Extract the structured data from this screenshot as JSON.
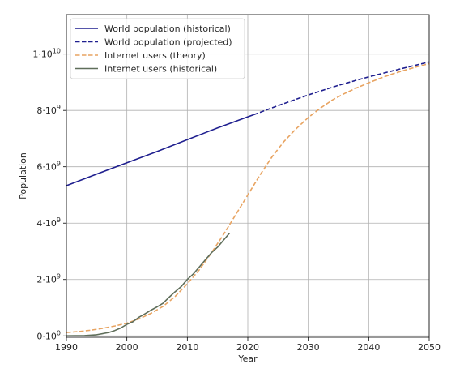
{
  "chart_data": {
    "type": "line",
    "xlabel": "Year",
    "ylabel": "Population",
    "xlim": [
      1990,
      2050
    ],
    "ylim": [
      -0.05,
      11.4
    ],
    "y_unit_exponent": 9,
    "grid": true,
    "legend_placement": "top-left",
    "x_ticks": [
      1990,
      2000,
      2010,
      2020,
      2030,
      2040,
      2050
    ],
    "x_tick_labels": [
      "1990",
      "2000",
      "2010",
      "2020",
      "2030",
      "2040",
      "2050"
    ],
    "y_ticks": [
      0,
      2,
      4,
      6,
      8,
      10
    ],
    "y_tick_labels": [
      {
        "base": "0·10",
        "exp": "0"
      },
      {
        "base": "2·10",
        "exp": "9"
      },
      {
        "base": "4·10",
        "exp": "9"
      },
      {
        "base": "6·10",
        "exp": "9"
      },
      {
        "base": "8·10",
        "exp": "9"
      },
      {
        "base": "1·10",
        "exp": "10"
      }
    ],
    "series": [
      {
        "name": "World population (historical)",
        "color": "#1f1f8f",
        "style": "solid",
        "x": [
          1990,
          1995,
          2000,
          2005,
          2010,
          2015,
          2021
        ],
        "y": [
          5.33,
          5.74,
          6.14,
          6.54,
          6.96,
          7.38,
          7.85
        ]
      },
      {
        "name": "World population (projected)",
        "color": "#1f1f8f",
        "style": "dashed",
        "x": [
          2021,
          2025,
          2030,
          2035,
          2040,
          2045,
          2050
        ],
        "y": [
          7.85,
          8.17,
          8.55,
          8.89,
          9.19,
          9.46,
          9.72
        ]
      },
      {
        "name": "Internet users (theory)",
        "color": "#e8a462",
        "style": "dashed",
        "x": [
          1990,
          1992,
          1994,
          1996,
          1998,
          2000,
          2002,
          2004,
          2006,
          2008,
          2010,
          2012,
          2014,
          2016,
          2018,
          2020,
          2022,
          2024,
          2026,
          2028,
          2030,
          2032,
          2034,
          2036,
          2038,
          2040,
          2042,
          2044,
          2046,
          2048,
          2050
        ],
        "y": [
          0.12,
          0.15,
          0.2,
          0.27,
          0.35,
          0.45,
          0.6,
          0.8,
          1.05,
          1.4,
          1.85,
          2.35,
          2.95,
          3.6,
          4.3,
          5.0,
          5.7,
          6.35,
          6.9,
          7.35,
          7.75,
          8.08,
          8.37,
          8.6,
          8.8,
          8.98,
          9.15,
          9.3,
          9.43,
          9.55,
          9.66
        ]
      },
      {
        "name": "Internet users (historical)",
        "color": "#5f6e5a",
        "style": "solid",
        "x": [
          1990,
          1993,
          1995,
          1997,
          1998,
          1999,
          2000,
          2001,
          2002,
          2003,
          2004,
          2005,
          2006,
          2007,
          2008,
          2009,
          2010,
          2011,
          2012,
          2013,
          2014,
          2015,
          2016,
          2017
        ],
        "y": [
          0.003,
          0.01,
          0.04,
          0.12,
          0.19,
          0.28,
          0.41,
          0.5,
          0.66,
          0.78,
          0.91,
          1.03,
          1.16,
          1.37,
          1.57,
          1.75,
          2.0,
          2.2,
          2.45,
          2.7,
          2.95,
          3.15,
          3.4,
          3.65
        ]
      }
    ]
  }
}
